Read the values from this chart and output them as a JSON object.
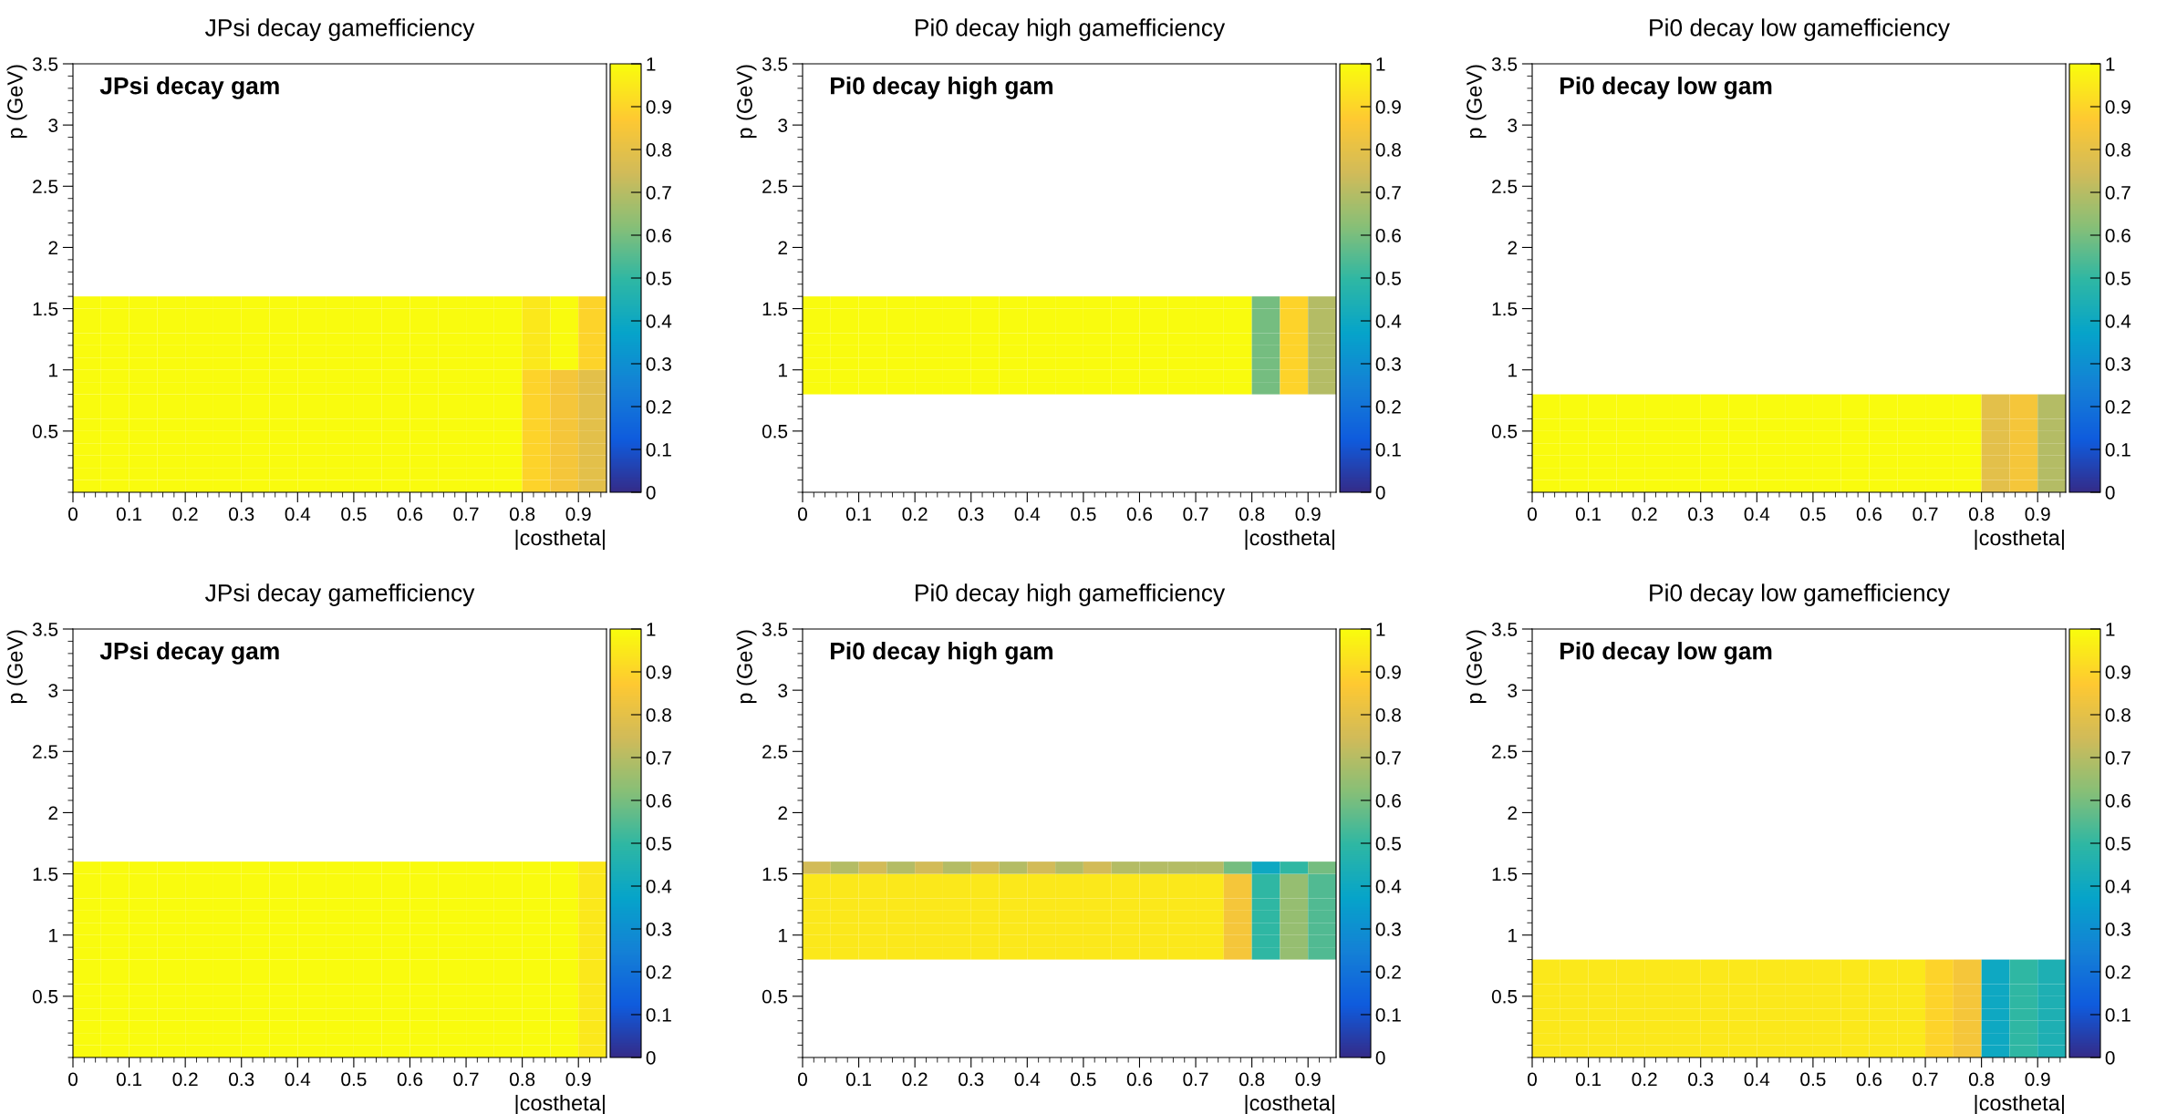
{
  "chart_data": [
    {
      "type": "heatmap",
      "title": "JPsi decay gamefficiency",
      "annotations": [
        "JPsi decay gam"
      ],
      "xlabel": "|costheta|",
      "ylabel": "p (GeV)",
      "xlim": [
        0,
        0.95
      ],
      "xticks": [
        0,
        0.1,
        0.2,
        0.3,
        0.4,
        0.5,
        0.6,
        0.7,
        0.8,
        0.9
      ],
      "ylim": [
        0,
        3.5
      ],
      "yticks": [
        0.5,
        1,
        1.5,
        2,
        2.5,
        3,
        3.5
      ],
      "clim": [
        0,
        1
      ],
      "cticks": [
        0,
        0.1,
        0.2,
        0.3,
        0.4,
        0.5,
        0.6,
        0.7,
        0.8,
        0.9,
        1
      ],
      "x": [
        0.025,
        0.075,
        0.125,
        0.175,
        0.225,
        0.275,
        0.325,
        0.375,
        0.425,
        0.475,
        0.525,
        0.575,
        0.625,
        0.675,
        0.725,
        0.775,
        0.825,
        0.875,
        0.925
      ],
      "y": [
        0.05,
        0.15,
        0.25,
        0.35,
        0.45,
        0.55,
        0.65,
        0.75,
        0.85,
        0.95,
        1.05,
        1.15,
        1.25,
        1.35,
        1.45,
        1.55
      ],
      "cells": [
        [
          1,
          1,
          1,
          1,
          1,
          1,
          1,
          1,
          1,
          1,
          1,
          1,
          1,
          1,
          1,
          1,
          0.9,
          0.85,
          0.8
        ],
        [
          1,
          1,
          1,
          1,
          1,
          1,
          1,
          1,
          1,
          1,
          1,
          1,
          1,
          1,
          1,
          1,
          0.9,
          0.85,
          0.8
        ],
        [
          1,
          1,
          1,
          1,
          1,
          1,
          1,
          1,
          1,
          1,
          1,
          1,
          1,
          1,
          1,
          1,
          0.9,
          0.85,
          0.8
        ],
        [
          1,
          1,
          1,
          1,
          1,
          1,
          1,
          1,
          1,
          1,
          1,
          1,
          1,
          1,
          1,
          1,
          0.9,
          0.85,
          0.8
        ],
        [
          1,
          1,
          1,
          1,
          1,
          1,
          1,
          1,
          1,
          1,
          1,
          1,
          1,
          1,
          1,
          1,
          0.9,
          0.85,
          0.8
        ],
        [
          1,
          1,
          1,
          1,
          1,
          1,
          1,
          1,
          1,
          1,
          1,
          1,
          1,
          1,
          1,
          1,
          0.9,
          0.85,
          0.8
        ],
        [
          1,
          1,
          1,
          1,
          1,
          1,
          1,
          1,
          1,
          1,
          1,
          1,
          1,
          1,
          1,
          1,
          0.9,
          0.85,
          0.8
        ],
        [
          1,
          1,
          1,
          1,
          1,
          1,
          1,
          1,
          1,
          1,
          1,
          1,
          1,
          1,
          1,
          1,
          0.9,
          0.85,
          0.8
        ],
        [
          1,
          1,
          1,
          1,
          1,
          1,
          1,
          1,
          1,
          1,
          1,
          1,
          1,
          1,
          1,
          1,
          0.9,
          0.85,
          0.8
        ],
        [
          1,
          1,
          1,
          1,
          1,
          1,
          1,
          1,
          1,
          1,
          1,
          1,
          1,
          1,
          1,
          1,
          0.9,
          0.85,
          0.8
        ],
        [
          1,
          1,
          1,
          1,
          1,
          1,
          1,
          1,
          1,
          1,
          1,
          1,
          1,
          1,
          1,
          1,
          0.95,
          1,
          0.9
        ],
        [
          1,
          1,
          1,
          1,
          1,
          1,
          1,
          1,
          1,
          1,
          1,
          1,
          1,
          1,
          1,
          1,
          0.95,
          1,
          0.9
        ],
        [
          1,
          1,
          1,
          1,
          1,
          1,
          1,
          1,
          1,
          1,
          1,
          1,
          1,
          1,
          1,
          1,
          0.95,
          1,
          0.9
        ],
        [
          1,
          1,
          1,
          1,
          1,
          1,
          1,
          1,
          1,
          1,
          1,
          1,
          1,
          1,
          1,
          1,
          0.95,
          1,
          0.9
        ],
        [
          1,
          1,
          1,
          1,
          1,
          1,
          1,
          1,
          1,
          1,
          1,
          1,
          1,
          1,
          1,
          1,
          0.95,
          1,
          0.9
        ],
        [
          1,
          1,
          1,
          1,
          1,
          1,
          1,
          1,
          1,
          1,
          1,
          1,
          1,
          1,
          1,
          1,
          0.95,
          1,
          0.9
        ]
      ]
    },
    {
      "type": "heatmap",
      "title": "Pi0 decay high gamefficiency",
      "annotations": [
        "Pi0 decay high gam"
      ],
      "xlabel": "|costheta|",
      "ylabel": "p (GeV)",
      "xlim": [
        0,
        0.95
      ],
      "xticks": [
        0,
        0.1,
        0.2,
        0.3,
        0.4,
        0.5,
        0.6,
        0.7,
        0.8,
        0.9
      ],
      "ylim": [
        0,
        3.5
      ],
      "yticks": [
        0.5,
        1,
        1.5,
        2,
        2.5,
        3,
        3.5
      ],
      "clim": [
        0,
        1
      ],
      "cticks": [
        0,
        0.1,
        0.2,
        0.3,
        0.4,
        0.5,
        0.6,
        0.7,
        0.8,
        0.9,
        1
      ],
      "x": [
        0.025,
        0.075,
        0.125,
        0.175,
        0.225,
        0.275,
        0.325,
        0.375,
        0.425,
        0.475,
        0.525,
        0.575,
        0.625,
        0.675,
        0.725,
        0.775,
        0.825,
        0.875,
        0.925
      ],
      "y": [
        0.85,
        0.95,
        1.05,
        1.15,
        1.25,
        1.35,
        1.45,
        1.55
      ],
      "cells": [
        [
          1,
          1,
          1,
          1,
          1,
          1,
          1,
          1,
          1,
          1,
          1,
          1,
          1,
          1,
          1,
          1,
          0.6,
          0.9,
          0.7
        ],
        [
          1,
          1,
          1,
          1,
          1,
          1,
          1,
          1,
          1,
          1,
          1,
          1,
          1,
          1,
          1,
          1,
          0.6,
          0.9,
          0.7
        ],
        [
          1,
          1,
          1,
          1,
          1,
          1,
          1,
          1,
          1,
          1,
          1,
          1,
          1,
          1,
          1,
          1,
          0.6,
          0.9,
          0.7
        ],
        [
          1,
          1,
          1,
          1,
          1,
          1,
          1,
          1,
          1,
          1,
          1,
          1,
          1,
          1,
          1,
          1,
          0.6,
          0.9,
          0.7
        ],
        [
          1,
          1,
          1,
          1,
          1,
          1,
          1,
          1,
          1,
          1,
          1,
          1,
          1,
          1,
          1,
          1,
          0.6,
          0.9,
          0.7
        ],
        [
          1,
          1,
          1,
          1,
          1,
          1,
          1,
          1,
          1,
          1,
          1,
          1,
          1,
          1,
          1,
          1,
          0.6,
          0.9,
          0.7
        ],
        [
          1,
          1,
          1,
          1,
          1,
          1,
          1,
          1,
          1,
          1,
          1,
          1,
          1,
          1,
          1,
          1,
          0.6,
          0.9,
          0.7
        ],
        [
          1,
          1,
          1,
          1,
          1,
          1,
          1,
          1,
          1,
          1,
          1,
          1,
          1,
          1,
          1,
          1,
          0.6,
          0.9,
          0.7
        ]
      ]
    },
    {
      "type": "heatmap",
      "title": "Pi0 decay low gamefficiency",
      "annotations": [
        "Pi0 decay low gam"
      ],
      "xlabel": "|costheta|",
      "ylabel": "p (GeV)",
      "xlim": [
        0,
        0.95
      ],
      "xticks": [
        0,
        0.1,
        0.2,
        0.3,
        0.4,
        0.5,
        0.6,
        0.7,
        0.8,
        0.9
      ],
      "ylim": [
        0,
        3.5
      ],
      "yticks": [
        0.5,
        1,
        1.5,
        2,
        2.5,
        3,
        3.5
      ],
      "clim": [
        0,
        1
      ],
      "cticks": [
        0,
        0.1,
        0.2,
        0.3,
        0.4,
        0.5,
        0.6,
        0.7,
        0.8,
        0.9,
        1
      ],
      "x": [
        0.025,
        0.075,
        0.125,
        0.175,
        0.225,
        0.275,
        0.325,
        0.375,
        0.425,
        0.475,
        0.525,
        0.575,
        0.625,
        0.675,
        0.725,
        0.775,
        0.825,
        0.875,
        0.925
      ],
      "y": [
        0.05,
        0.15,
        0.25,
        0.35,
        0.45,
        0.55,
        0.65,
        0.75
      ],
      "cells": [
        [
          1,
          1,
          1,
          1,
          1,
          1,
          1,
          1,
          1,
          1,
          1,
          1,
          1,
          1,
          1,
          1,
          0.8,
          0.85,
          0.7
        ],
        [
          1,
          1,
          1,
          1,
          1,
          1,
          1,
          1,
          1,
          1,
          1,
          1,
          1,
          1,
          1,
          1,
          0.8,
          0.85,
          0.7
        ],
        [
          1,
          1,
          1,
          1,
          1,
          1,
          1,
          1,
          1,
          1,
          1,
          1,
          1,
          1,
          1,
          1,
          0.8,
          0.85,
          0.7
        ],
        [
          1,
          1,
          1,
          1,
          1,
          1,
          1,
          1,
          1,
          1,
          1,
          1,
          1,
          1,
          1,
          1,
          0.8,
          0.85,
          0.7
        ],
        [
          1,
          1,
          1,
          1,
          1,
          1,
          1,
          1,
          1,
          1,
          1,
          1,
          1,
          1,
          1,
          1,
          0.8,
          0.85,
          0.7
        ],
        [
          1,
          1,
          1,
          1,
          1,
          1,
          1,
          1,
          1,
          1,
          1,
          1,
          1,
          1,
          1,
          1,
          0.8,
          0.85,
          0.7
        ],
        [
          1,
          1,
          1,
          1,
          1,
          1,
          1,
          1,
          1,
          1,
          1,
          1,
          1,
          1,
          1,
          1,
          0.8,
          0.85,
          0.7
        ],
        [
          1,
          1,
          1,
          1,
          1,
          1,
          1,
          1,
          1,
          1,
          1,
          1,
          1,
          1,
          1,
          1,
          0.8,
          0.85,
          0.7
        ]
      ]
    },
    {
      "type": "heatmap",
      "title": "JPsi decay gamefficiency",
      "annotations": [
        "JPsi decay gam"
      ],
      "xlabel": "|costheta|",
      "ylabel": "p (GeV)",
      "xlim": [
        0,
        0.95
      ],
      "xticks": [
        0,
        0.1,
        0.2,
        0.3,
        0.4,
        0.5,
        0.6,
        0.7,
        0.8,
        0.9
      ],
      "ylim": [
        0,
        3.5
      ],
      "yticks": [
        0.5,
        1,
        1.5,
        2,
        2.5,
        3,
        3.5
      ],
      "clim": [
        0,
        1
      ],
      "cticks": [
        0,
        0.1,
        0.2,
        0.3,
        0.4,
        0.5,
        0.6,
        0.7,
        0.8,
        0.9,
        1
      ],
      "x": [
        0.025,
        0.075,
        0.125,
        0.175,
        0.225,
        0.275,
        0.325,
        0.375,
        0.425,
        0.475,
        0.525,
        0.575,
        0.625,
        0.675,
        0.725,
        0.775,
        0.825,
        0.875,
        0.925
      ],
      "y": [
        0.05,
        0.15,
        0.25,
        0.35,
        0.45,
        0.55,
        0.65,
        0.75,
        0.85,
        0.95,
        1.05,
        1.15,
        1.25,
        1.35,
        1.45,
        1.55
      ],
      "cells": [
        [
          1,
          1,
          1,
          1,
          1,
          1,
          1,
          1,
          1,
          1,
          1,
          1,
          1,
          1,
          1,
          1,
          1,
          1,
          0.95
        ],
        [
          1,
          1,
          1,
          1,
          1,
          1,
          1,
          1,
          1,
          1,
          1,
          1,
          1,
          1,
          1,
          1,
          1,
          1,
          0.95
        ],
        [
          1,
          1,
          1,
          1,
          1,
          1,
          1,
          1,
          1,
          1,
          1,
          1,
          1,
          1,
          1,
          1,
          1,
          1,
          0.95
        ],
        [
          1,
          1,
          1,
          1,
          1,
          1,
          1,
          1,
          1,
          1,
          1,
          1,
          1,
          1,
          1,
          1,
          1,
          1,
          0.95
        ],
        [
          1,
          1,
          1,
          1,
          1,
          1,
          1,
          1,
          1,
          1,
          1,
          1,
          1,
          1,
          1,
          1,
          1,
          1,
          0.95
        ],
        [
          1,
          1,
          1,
          1,
          1,
          1,
          1,
          1,
          1,
          1,
          1,
          1,
          1,
          1,
          1,
          1,
          1,
          1,
          0.95
        ],
        [
          1,
          1,
          1,
          1,
          1,
          1,
          1,
          1,
          1,
          1,
          1,
          1,
          1,
          1,
          1,
          1,
          1,
          1,
          0.95
        ],
        [
          1,
          1,
          1,
          1,
          1,
          1,
          1,
          1,
          1,
          1,
          1,
          1,
          1,
          1,
          1,
          1,
          1,
          1,
          0.95
        ],
        [
          1,
          1,
          1,
          1,
          1,
          1,
          1,
          1,
          1,
          1,
          1,
          1,
          1,
          1,
          1,
          1,
          1,
          1,
          0.95
        ],
        [
          1,
          1,
          1,
          1,
          1,
          1,
          1,
          1,
          1,
          1,
          1,
          1,
          1,
          1,
          1,
          1,
          1,
          1,
          0.95
        ],
        [
          1,
          1,
          1,
          1,
          1,
          1,
          1,
          1,
          1,
          1,
          1,
          1,
          1,
          1,
          1,
          1,
          1,
          1,
          0.95
        ],
        [
          1,
          1,
          1,
          1,
          1,
          1,
          1,
          1,
          1,
          1,
          1,
          1,
          1,
          1,
          1,
          1,
          1,
          1,
          0.95
        ],
        [
          1,
          1,
          1,
          1,
          1,
          1,
          1,
          1,
          1,
          1,
          1,
          1,
          1,
          1,
          1,
          1,
          1,
          1,
          0.95
        ],
        [
          1,
          1,
          1,
          1,
          1,
          1,
          1,
          1,
          1,
          1,
          1,
          1,
          1,
          1,
          1,
          1,
          1,
          1,
          0.95
        ],
        [
          1,
          1,
          1,
          1,
          1,
          1,
          1,
          1,
          1,
          1,
          1,
          1,
          1,
          1,
          1,
          1,
          1,
          1,
          0.95
        ],
        [
          1,
          1,
          1,
          1,
          1,
          1,
          1,
          1,
          1,
          1,
          1,
          1,
          1,
          1,
          1,
          1,
          1,
          1,
          0.95
        ]
      ]
    },
    {
      "type": "heatmap",
      "title": "Pi0 decay high gamefficiency",
      "annotations": [
        "Pi0 decay high gam"
      ],
      "xlabel": "|costheta|",
      "ylabel": "p (GeV)",
      "xlim": [
        0,
        0.95
      ],
      "xticks": [
        0,
        0.1,
        0.2,
        0.3,
        0.4,
        0.5,
        0.6,
        0.7,
        0.8,
        0.9
      ],
      "ylim": [
        0,
        3.5
      ],
      "yticks": [
        0.5,
        1,
        1.5,
        2,
        2.5,
        3,
        3.5
      ],
      "clim": [
        0,
        1
      ],
      "cticks": [
        0,
        0.1,
        0.2,
        0.3,
        0.4,
        0.5,
        0.6,
        0.7,
        0.8,
        0.9,
        1
      ],
      "x": [
        0.025,
        0.075,
        0.125,
        0.175,
        0.225,
        0.275,
        0.325,
        0.375,
        0.425,
        0.475,
        0.525,
        0.575,
        0.625,
        0.675,
        0.725,
        0.775,
        0.825,
        0.875,
        0.925
      ],
      "y": [
        0.85,
        0.95,
        1.05,
        1.15,
        1.25,
        1.35,
        1.45,
        1.55
      ],
      "cells": [
        [
          0.95,
          0.95,
          0.95,
          0.95,
          0.95,
          0.95,
          0.95,
          0.95,
          0.95,
          0.95,
          0.95,
          0.95,
          0.95,
          0.95,
          0.95,
          0.85,
          0.5,
          0.65,
          0.55
        ],
        [
          0.95,
          0.95,
          0.95,
          0.95,
          0.95,
          0.95,
          0.95,
          0.95,
          0.95,
          0.95,
          0.95,
          0.95,
          0.95,
          0.95,
          0.95,
          0.85,
          0.5,
          0.65,
          0.55
        ],
        [
          0.95,
          0.95,
          0.95,
          0.95,
          0.95,
          0.95,
          0.95,
          0.95,
          0.95,
          0.95,
          0.95,
          0.95,
          0.95,
          0.95,
          0.95,
          0.85,
          0.5,
          0.65,
          0.55
        ],
        [
          0.95,
          0.95,
          0.95,
          0.95,
          0.95,
          0.95,
          0.95,
          0.95,
          0.95,
          0.95,
          0.95,
          0.95,
          0.95,
          0.95,
          0.95,
          0.85,
          0.5,
          0.65,
          0.55
        ],
        [
          0.95,
          0.95,
          0.95,
          0.95,
          0.95,
          0.95,
          0.95,
          0.95,
          0.95,
          0.95,
          0.95,
          0.95,
          0.95,
          0.95,
          0.95,
          0.85,
          0.5,
          0.65,
          0.55
        ],
        [
          0.95,
          0.95,
          0.95,
          0.95,
          0.95,
          0.95,
          0.95,
          0.95,
          0.95,
          0.95,
          0.95,
          0.95,
          0.95,
          0.95,
          0.95,
          0.85,
          0.5,
          0.65,
          0.55
        ],
        [
          0.95,
          0.95,
          0.95,
          0.95,
          0.95,
          0.95,
          0.95,
          0.95,
          0.95,
          0.95,
          0.95,
          0.95,
          0.95,
          0.95,
          0.95,
          0.85,
          0.5,
          0.65,
          0.55
        ],
        [
          0.75,
          0.7,
          0.75,
          0.7,
          0.75,
          0.7,
          0.75,
          0.7,
          0.75,
          0.7,
          0.75,
          0.7,
          0.7,
          0.7,
          0.7,
          0.6,
          0.4,
          0.5,
          0.6
        ]
      ]
    },
    {
      "type": "heatmap",
      "title": "Pi0 decay low gamefficiency",
      "annotations": [
        "Pi0 decay low gam"
      ],
      "xlabel": "|costheta|",
      "ylabel": "p (GeV)",
      "xlim": [
        0,
        0.95
      ],
      "xticks": [
        0,
        0.1,
        0.2,
        0.3,
        0.4,
        0.5,
        0.6,
        0.7,
        0.8,
        0.9
      ],
      "ylim": [
        0,
        3.5
      ],
      "yticks": [
        0.5,
        1,
        1.5,
        2,
        2.5,
        3,
        3.5
      ],
      "clim": [
        0,
        1
      ],
      "cticks": [
        0,
        0.1,
        0.2,
        0.3,
        0.4,
        0.5,
        0.6,
        0.7,
        0.8,
        0.9,
        1
      ],
      "x": [
        0.025,
        0.075,
        0.125,
        0.175,
        0.225,
        0.275,
        0.325,
        0.375,
        0.425,
        0.475,
        0.525,
        0.575,
        0.625,
        0.675,
        0.725,
        0.775,
        0.825,
        0.875,
        0.925
      ],
      "y": [
        0.05,
        0.15,
        0.25,
        0.35,
        0.45,
        0.55,
        0.65,
        0.75
      ],
      "cells": [
        [
          0.95,
          0.95,
          0.95,
          0.95,
          0.95,
          0.95,
          0.95,
          0.95,
          0.95,
          0.95,
          0.95,
          0.95,
          0.95,
          0.95,
          0.9,
          0.85,
          0.4,
          0.5,
          0.45
        ],
        [
          0.95,
          0.95,
          0.95,
          0.95,
          0.95,
          0.95,
          0.95,
          0.95,
          0.95,
          0.95,
          0.95,
          0.95,
          0.95,
          0.95,
          0.9,
          0.85,
          0.4,
          0.5,
          0.45
        ],
        [
          0.95,
          0.95,
          0.95,
          0.95,
          0.95,
          0.95,
          0.95,
          0.95,
          0.95,
          0.95,
          0.95,
          0.95,
          0.95,
          0.95,
          0.9,
          0.85,
          0.4,
          0.5,
          0.45
        ],
        [
          0.95,
          0.95,
          0.95,
          0.95,
          0.95,
          0.95,
          0.95,
          0.95,
          0.95,
          0.95,
          0.95,
          0.95,
          0.95,
          0.95,
          0.9,
          0.85,
          0.4,
          0.5,
          0.45
        ],
        [
          0.95,
          0.95,
          0.95,
          0.95,
          0.95,
          0.95,
          0.95,
          0.95,
          0.95,
          0.95,
          0.95,
          0.95,
          0.95,
          0.95,
          0.9,
          0.85,
          0.4,
          0.5,
          0.45
        ],
        [
          0.95,
          0.95,
          0.95,
          0.95,
          0.95,
          0.95,
          0.95,
          0.95,
          0.95,
          0.95,
          0.95,
          0.95,
          0.95,
          0.95,
          0.9,
          0.85,
          0.4,
          0.5,
          0.45
        ],
        [
          0.95,
          0.95,
          0.95,
          0.95,
          0.95,
          0.95,
          0.95,
          0.95,
          0.95,
          0.95,
          0.95,
          0.95,
          0.95,
          0.95,
          0.9,
          0.85,
          0.4,
          0.5,
          0.45
        ],
        [
          0.95,
          0.95,
          0.95,
          0.95,
          0.95,
          0.95,
          0.95,
          0.95,
          0.95,
          0.95,
          0.95,
          0.95,
          0.95,
          0.95,
          0.9,
          0.85,
          0.4,
          0.5,
          0.45
        ]
      ]
    }
  ]
}
